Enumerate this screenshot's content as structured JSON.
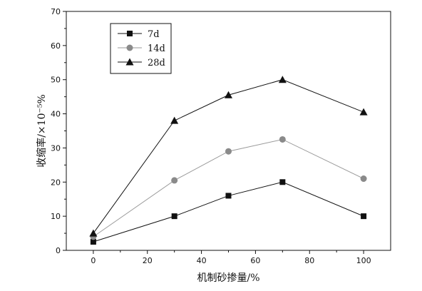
{
  "chart_data": {
    "type": "line",
    "x": [
      0,
      30,
      50,
      70,
      100
    ],
    "xlim": [
      -10,
      110
    ],
    "ylim": [
      0,
      70
    ],
    "xticks": [
      0,
      20,
      40,
      60,
      80,
      100
    ],
    "yticks": [
      0,
      10,
      20,
      30,
      40,
      50,
      60,
      70
    ],
    "xlabel": "机制砂掺量/%",
    "ylabel": "收缩率/×10⁻⁵%",
    "legend_position": "top-left",
    "grid": false,
    "series": [
      {
        "name": "7d",
        "values": [
          2.5,
          10,
          16,
          20,
          10
        ],
        "marker": "square",
        "color": "#111111",
        "line_color": "#111111"
      },
      {
        "name": "14d",
        "values": [
          4,
          20.5,
          29,
          32.5,
          21
        ],
        "marker": "circle",
        "color": "#8a8a8a",
        "line_color": "#9a9a9a"
      },
      {
        "name": "28d",
        "values": [
          5,
          38,
          45.5,
          50,
          40.5
        ],
        "marker": "triangle",
        "color": "#111111",
        "line_color": "#111111"
      }
    ]
  }
}
